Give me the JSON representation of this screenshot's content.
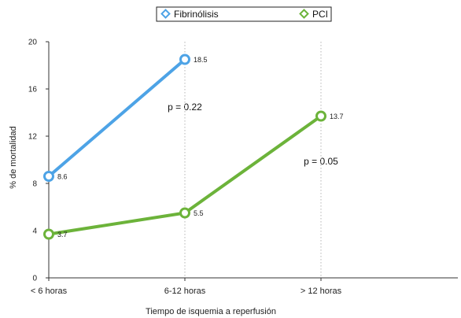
{
  "chart_data": {
    "type": "line",
    "categories": [
      "< 6 horas",
      "6-12 horas",
      "> 12 horas"
    ],
    "series": [
      {
        "name": "Fibrinólisis",
        "color": "#4da3e6",
        "values": [
          8.6,
          18.5,
          null
        ],
        "labels": [
          "8.6",
          "18.5",
          ""
        ]
      },
      {
        "name": "PCI",
        "color": "#6cb33a",
        "values": [
          3.7,
          5.5,
          13.7
        ],
        "labels": [
          "3.7",
          "5.5",
          "13.7"
        ]
      }
    ],
    "xlabel": "Tiempo de isquemia a reperfusión",
    "ylabel": "% de mortalidad",
    "ylim": [
      0,
      20
    ],
    "yticks": [
      0,
      4,
      8,
      12,
      16,
      20
    ],
    "grid": "vertical-dotted",
    "legend": "top-center",
    "annotations": [
      {
        "text": "p = 0.22",
        "x": 1.0,
        "y": 14.2
      },
      {
        "text": "p = 0.05",
        "x": 2.0,
        "y": 9.6
      }
    ]
  }
}
